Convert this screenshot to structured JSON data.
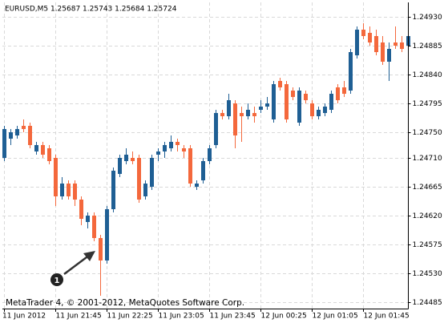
{
  "chart_data": {
    "type": "candlestick",
    "title": "EURUSD,M5  1.25687 1.25743 1.25684 1.25724",
    "footer": "MetaTrader 4, © 2001-2012, MetaQuotes Software Corp.",
    "annotation": "1",
    "up_color": "#1f5f94",
    "down_color": "#f4683c",
    "grid": true,
    "categories": [
      "11 Jun 2012",
      null,
      null,
      null,
      null,
      null,
      null,
      null,
      "11 Jun 21:45",
      null,
      null,
      null,
      null,
      null,
      null,
      null,
      "11 Jun 22:25",
      null,
      null,
      null,
      null,
      null,
      null,
      null,
      "11 Jun 23:05",
      null,
      null,
      null,
      null,
      null,
      null,
      null,
      "11 Jun 23:45",
      null,
      null,
      null,
      null,
      null,
      null,
      null,
      "12 Jun 00:25",
      null,
      null,
      null,
      null,
      null,
      null,
      null,
      "12 Jun 01:05",
      null,
      null,
      null,
      null,
      null,
      null,
      null,
      "12 Jun 01:45",
      null,
      null,
      null,
      null,
      null,
      null,
      null
    ],
    "open": [
      1.2471,
      1.2474,
      1.24745,
      1.2476,
      1.2476,
      1.2472,
      1.2473,
      1.24725,
      1.2471,
      1.2465,
      1.2467,
      1.2467,
      1.24645,
      1.2461,
      1.2462,
      1.24585,
      1.2455,
      1.2463,
      1.24685,
      1.24705,
      1.2471,
      1.2471,
      1.2465,
      1.24665,
      1.24715,
      1.2472,
      1.24725,
      1.24735,
      1.24725,
      1.24725,
      1.24665,
      1.24675,
      1.24705,
      1.2473,
      1.2478,
      1.24775,
      1.24795,
      1.2478,
      1.24775,
      1.2478,
      1.24785,
      1.2479,
      1.2477,
      1.2483,
      1.24825,
      1.24815,
      1.24765,
      1.2481,
      1.24795,
      1.24775,
      1.2478,
      1.24785,
      1.2482,
      1.2482,
      1.24815,
      1.2487,
      1.2491,
      1.24905,
      1.249,
      1.2489,
      1.2486,
      1.2489,
      1.2489,
      1.24885
    ],
    "high": [
      1.2476,
      1.24755,
      1.2476,
      1.2477,
      1.24765,
      1.24735,
      1.24735,
      1.2473,
      1.24715,
      1.2468,
      1.24675,
      1.24675,
      1.2465,
      1.24625,
      1.24625,
      1.2459,
      1.24635,
      1.24695,
      1.24715,
      1.24725,
      1.2472,
      1.24715,
      1.24675,
      1.24715,
      1.24725,
      1.24735,
      1.24745,
      1.2474,
      1.2473,
      1.2473,
      1.24675,
      1.2471,
      1.2473,
      1.24785,
      1.24785,
      1.2481,
      1.248,
      1.2479,
      1.24795,
      1.2479,
      1.248,
      1.24805,
      1.2483,
      1.24835,
      1.2483,
      1.2482,
      1.2482,
      1.24815,
      1.248,
      1.2479,
      1.24795,
      1.24815,
      1.24825,
      1.2483,
      1.2488,
      1.24915,
      1.2492,
      1.24915,
      1.2491,
      1.249,
      1.2489,
      1.24915,
      1.249,
      1.24905
    ],
    "low": [
      1.24705,
      1.2473,
      1.2474,
      1.2475,
      1.24725,
      1.24715,
      1.2471,
      1.247,
      1.24635,
      1.24645,
      1.24645,
      1.24635,
      1.24605,
      1.246,
      1.2458,
      1.24495,
      1.24545,
      1.24625,
      1.2468,
      1.247,
      1.247,
      1.2464,
      1.24645,
      1.2466,
      1.24705,
      1.2471,
      1.2472,
      1.2472,
      1.2471,
      1.24665,
      1.2466,
      1.2467,
      1.247,
      1.24725,
      1.2477,
      1.2477,
      1.24725,
      1.24735,
      1.2477,
      1.24765,
      1.2478,
      1.24785,
      1.24765,
      1.24815,
      1.24765,
      1.248,
      1.2476,
      1.24795,
      1.2477,
      1.2477,
      1.24775,
      1.2478,
      1.24795,
      1.24805,
      1.2481,
      1.24865,
      1.24895,
      1.24885,
      1.2487,
      1.24855,
      1.2483,
      1.2488,
      1.24875,
      1.2488
    ],
    "close": [
      1.24755,
      1.2475,
      1.24755,
      1.24755,
      1.2473,
      1.2473,
      1.24715,
      1.24705,
      1.2465,
      1.2467,
      1.2465,
      1.24645,
      1.24615,
      1.2462,
      1.24585,
      1.2455,
      1.2463,
      1.2469,
      1.2471,
      1.24715,
      1.24705,
      1.24645,
      1.2467,
      1.2471,
      1.2472,
      1.2473,
      1.24735,
      1.2473,
      1.2472,
      1.2467,
      1.2467,
      1.24705,
      1.24725,
      1.2478,
      1.24775,
      1.248,
      1.24745,
      1.24775,
      1.24785,
      1.24775,
      1.2479,
      1.24795,
      1.24825,
      1.2482,
      1.2477,
      1.24805,
      1.24815,
      1.248,
      1.24775,
      1.24785,
      1.2479,
      1.2481,
      1.248,
      1.2481,
      1.24875,
      1.2491,
      1.249,
      1.2489,
      1.24875,
      1.2486,
      1.2488,
      1.24885,
      1.2488,
      1.249
    ],
    "ylim": [
      1.24475,
      1.249525
    ],
    "yticks": [
      {
        "value": 1.2493,
        "label": "1.24930"
      },
      {
        "value": 1.24885,
        "label": "1.24885"
      },
      {
        "value": 1.2484,
        "label": "1.24840"
      },
      {
        "value": 1.24795,
        "label": "1.24795"
      },
      {
        "value": 1.2475,
        "label": "1.24750"
      },
      {
        "value": 1.2471,
        "label": "1.24710"
      },
      {
        "value": 1.24665,
        "label": "1.24665"
      },
      {
        "value": 1.2462,
        "label": "1.24620"
      },
      {
        "value": 1.24575,
        "label": "1.24575"
      },
      {
        "value": 1.2453,
        "label": "1.24530"
      },
      {
        "value": 1.24485,
        "label": "1.24485"
      }
    ]
  }
}
